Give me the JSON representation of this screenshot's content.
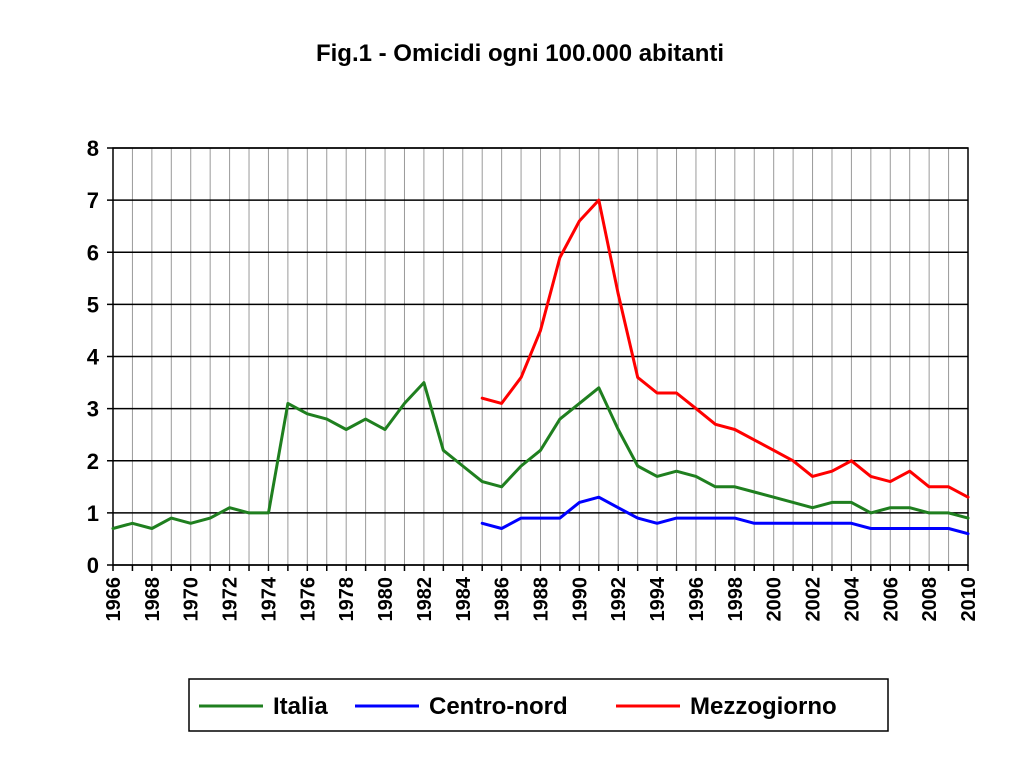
{
  "chart_data": {
    "type": "line",
    "title": "Fig.1 - Omicidi ogni 100.000 abitanti",
    "xlabel": "",
    "ylabel": "",
    "xlim": [
      1966,
      2010
    ],
    "ylim": [
      0,
      8
    ],
    "yticks": [
      0,
      1,
      2,
      3,
      4,
      5,
      6,
      7,
      8
    ],
    "xticks": [
      1966,
      1968,
      1970,
      1972,
      1974,
      1976,
      1978,
      1980,
      1982,
      1984,
      1986,
      1988,
      1990,
      1992,
      1994,
      1996,
      1998,
      2000,
      2002,
      2004,
      2006,
      2008,
      2010
    ],
    "grid": true,
    "legend": "bottom",
    "series": [
      {
        "name": "Italia",
        "color": "#1f7f1f",
        "x": [
          1966,
          1967,
          1968,
          1969,
          1970,
          1971,
          1972,
          1973,
          1974,
          1975,
          1976,
          1977,
          1978,
          1979,
          1980,
          1981,
          1982,
          1983,
          1984,
          1985,
          1986,
          1987,
          1988,
          1989,
          1990,
          1991,
          1992,
          1993,
          1994,
          1995,
          1996,
          1997,
          1998,
          1999,
          2000,
          2001,
          2002,
          2003,
          2004,
          2005,
          2006,
          2007,
          2008,
          2009,
          2010
        ],
        "values": [
          0.7,
          0.8,
          0.7,
          0.9,
          0.8,
          0.9,
          1.1,
          1.0,
          1.0,
          3.1,
          2.9,
          2.8,
          2.6,
          2.8,
          2.6,
          3.1,
          3.5,
          2.2,
          1.9,
          1.6,
          1.5,
          1.9,
          2.2,
          2.8,
          3.1,
          3.4,
          2.6,
          1.9,
          1.7,
          1.8,
          1.7,
          1.5,
          1.5,
          1.4,
          1.3,
          1.2,
          1.1,
          1.2,
          1.2,
          1.0,
          1.1,
          1.1,
          1.0,
          1.0,
          0.9
        ]
      },
      {
        "name": "Centro-nord",
        "color": "#0000ff",
        "x": [
          1985,
          1986,
          1987,
          1988,
          1989,
          1990,
          1991,
          1992,
          1993,
          1994,
          1995,
          1996,
          1997,
          1998,
          1999,
          2000,
          2001,
          2002,
          2003,
          2004,
          2005,
          2006,
          2007,
          2008,
          2009,
          2010
        ],
        "values": [
          0.8,
          0.7,
          0.9,
          0.9,
          0.9,
          1.2,
          1.3,
          1.1,
          0.9,
          0.8,
          0.9,
          0.9,
          0.9,
          0.9,
          0.8,
          0.8,
          0.8,
          0.8,
          0.8,
          0.8,
          0.7,
          0.7,
          0.7,
          0.7,
          0.7,
          0.6
        ]
      },
      {
        "name": "Mezzogiorno",
        "color": "#ff0000",
        "x": [
          1985,
          1986,
          1987,
          1988,
          1989,
          1990,
          1991,
          1992,
          1993,
          1994,
          1995,
          1996,
          1997,
          1998,
          1999,
          2000,
          2001,
          2002,
          2003,
          2004,
          2005,
          2006,
          2007,
          2008,
          2009,
          2010
        ],
        "values": [
          3.2,
          3.1,
          3.6,
          4.5,
          5.9,
          6.6,
          7.0,
          5.2,
          3.6,
          3.3,
          3.3,
          3.0,
          2.7,
          2.6,
          2.4,
          2.2,
          2.0,
          1.7,
          1.8,
          2.0,
          1.7,
          1.6,
          1.8,
          1.5,
          1.5,
          1.3
        ]
      }
    ]
  }
}
